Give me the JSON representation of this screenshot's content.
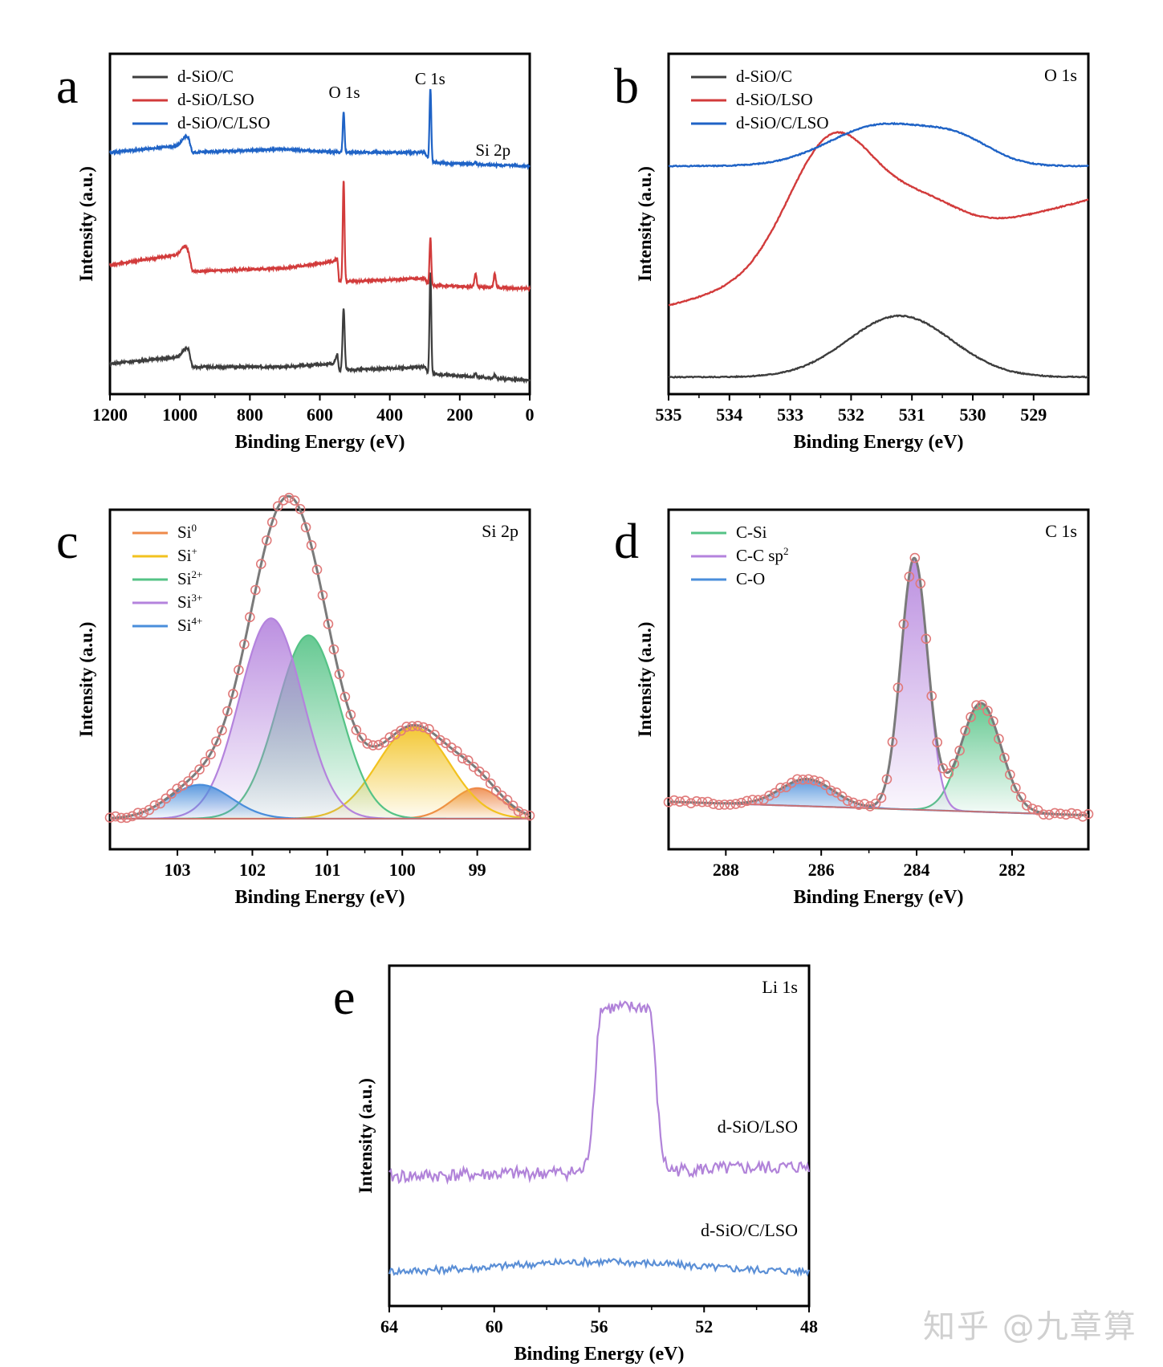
{
  "figure": {
    "watermark": "知乎 @九章算"
  },
  "chart_data": [
    {
      "panel": "a",
      "type": "line",
      "title": "",
      "xlabel": "Binding Energy (eV)",
      "ylabel": "Intensity (a.u.)",
      "xlim": [
        1200,
        0
      ],
      "ylim": [
        0,
        1
      ],
      "xticks": [
        1200,
        1000,
        800,
        600,
        400,
        200,
        0
      ],
      "tick_labels": [
        "1200",
        "1000",
        "800",
        "600",
        "400",
        "200",
        "0"
      ],
      "legend": {
        "placement": "top-left",
        "entries": [
          "d-SiO/C",
          "d-SiO/LSO",
          "d-SiO/C/LSO"
        ]
      },
      "annotations": [
        {
          "text": "O 1s",
          "x": 530,
          "y": 0.87
        },
        {
          "text": "C 1s",
          "x": 285,
          "y": 0.91
        },
        {
          "text": "Si 2p",
          "x": 105,
          "y": 0.7
        }
      ],
      "series": [
        {
          "name": "d-SiO/C",
          "color": "#3d3d3d",
          "baseline": [
            [
              1200,
              0.09
            ],
            [
              990,
              0.11
            ],
            [
              975,
              0.12
            ],
            [
              965,
              0.08
            ],
            [
              700,
              0.08
            ],
            [
              560,
              0.09
            ],
            [
              550,
              0.12
            ],
            [
              545,
              0.07
            ],
            [
              300,
              0.08
            ],
            [
              290,
              0.06
            ],
            [
              0,
              0.04
            ]
          ],
          "peaks": [
            {
              "x": 985,
              "h": 0.02,
              "w": 10
            },
            {
              "x": 532,
              "h": 0.18,
              "w": 3
            },
            {
              "x": 284,
              "h": 0.3,
              "w": 2.5
            },
            {
              "x": 155,
              "h": 0.01,
              "w": 3
            },
            {
              "x": 100,
              "h": 0.01,
              "w": 3
            }
          ]
        },
        {
          "name": "d-SiO/LSO",
          "color": "#d23b3b",
          "baseline": [
            [
              1200,
              0.38
            ],
            [
              1000,
              0.41
            ],
            [
              975,
              0.4
            ],
            [
              965,
              0.36
            ],
            [
              700,
              0.37
            ],
            [
              560,
              0.39
            ],
            [
              550,
              0.4
            ],
            [
              545,
              0.33
            ],
            [
              300,
              0.34
            ],
            [
              290,
              0.32
            ],
            [
              0,
              0.31
            ]
          ],
          "peaks": [
            {
              "x": 985,
              "h": 0.03,
              "w": 10
            },
            {
              "x": 532,
              "h": 0.3,
              "w": 2.5
            },
            {
              "x": 284,
              "h": 0.14,
              "w": 2.5
            },
            {
              "x": 155,
              "h": 0.04,
              "w": 3
            },
            {
              "x": 100,
              "h": 0.04,
              "w": 3
            }
          ]
        },
        {
          "name": "d-SiO/C/LSO",
          "color": "#1f63c6",
          "baseline": [
            [
              1200,
              0.71
            ],
            [
              1000,
              0.73
            ],
            [
              975,
              0.74
            ],
            [
              965,
              0.71
            ],
            [
              700,
              0.72
            ],
            [
              545,
              0.71
            ],
            [
              300,
              0.71
            ],
            [
              285,
              0.68
            ],
            [
              0,
              0.67
            ]
          ],
          "peaks": [
            {
              "x": 985,
              "h": 0.02,
              "w": 10
            },
            {
              "x": 532,
              "h": 0.12,
              "w": 2.5
            },
            {
              "x": 284,
              "h": 0.22,
              "w": 2.5
            },
            {
              "x": 155,
              "h": 0.005,
              "w": 3
            }
          ]
        }
      ]
    },
    {
      "panel": "b",
      "type": "line",
      "title": "O 1s",
      "xlabel": "Binding Energy (eV)",
      "ylabel": "Intensity (a.u.)",
      "xlim": [
        535,
        528.1
      ],
      "ylim": [
        0,
        1
      ],
      "xticks": [
        535,
        534,
        533,
        532,
        531,
        530,
        529
      ],
      "tick_labels": [
        "535",
        "534",
        "533",
        "532",
        "531",
        "530",
        "529"
      ],
      "legend": {
        "placement": "top-left",
        "entries": [
          "d-SiO/C",
          "d-SiO/LSO",
          "d-SiO/C/LSO"
        ]
      },
      "series": [
        {
          "name": "d-SiO/C",
          "color": "#3d3d3d",
          "baseline": 0.05,
          "slope": 0.0,
          "components": [
            {
              "c": 531.2,
              "h": 0.18,
              "s": 0.85
            }
          ]
        },
        {
          "name": "d-SiO/LSO",
          "color": "#d23b3b",
          "baseline": 0.26,
          "slope": -0.045,
          "components": [
            {
              "c": 532.3,
              "h": 0.38,
              "s": 0.72
            },
            {
              "c": 530.8,
              "h": 0.1,
              "s": 0.6
            }
          ]
        },
        {
          "name": "d-SiO/C/LSO",
          "color": "#1f63c6",
          "baseline": 0.67,
          "slope": 0.0,
          "components": [
            {
              "c": 531.5,
              "h": 0.12,
              "s": 0.85
            },
            {
              "c": 530.2,
              "h": 0.06,
              "s": 0.55
            }
          ]
        }
      ]
    },
    {
      "panel": "c",
      "type": "line",
      "title": "Si 2p",
      "xlabel": "Binding Energy (eV)",
      "ylabel": "Intensity (a.u.)",
      "xlim": [
        103.9,
        98.3
      ],
      "ylim": [
        0,
        1
      ],
      "xticks": [
        103,
        102,
        101,
        100,
        99
      ],
      "tick_labels": [
        "103",
        "102",
        "101",
        "100",
        "99"
      ],
      "legend": {
        "placement": "top-left",
        "entries": [
          "Si0",
          "Si+",
          "Si2+",
          "Si3+",
          "Si4+"
        ],
        "base": [
          "Si",
          "Si",
          "Si",
          "Si",
          "Si"
        ],
        "sup": [
          "0",
          "+",
          "2+",
          "3+",
          "4+"
        ]
      },
      "baseline": 0.09,
      "components": [
        {
          "name": "Si0",
          "color": "#ee8a4a",
          "c": 99.0,
          "h": 0.09,
          "s": 0.33
        },
        {
          "name": "Si+",
          "color": "#f2c21f",
          "c": 99.85,
          "h": 0.27,
          "s": 0.48
        },
        {
          "name": "Si2+",
          "color": "#55c386",
          "c": 101.25,
          "h": 0.54,
          "s": 0.42
        },
        {
          "name": "Si3+",
          "color": "#b483dd",
          "c": 101.75,
          "h": 0.59,
          "s": 0.42
        },
        {
          "name": "Si4+",
          "color": "#4a8edb",
          "c": 102.7,
          "h": 0.1,
          "s": 0.42
        }
      ],
      "envelope_color": "#7a7a7a",
      "marker_color": "#e07a7a"
    },
    {
      "panel": "d",
      "type": "line",
      "title": "C 1s",
      "xlabel": "Binding Energy (eV)",
      "ylabel": "Intensity (a.u.)",
      "xlim": [
        289.2,
        280.4
      ],
      "ylim": [
        0,
        1
      ],
      "xticks": [
        288,
        286,
        284,
        282
      ],
      "tick_labels": [
        "288",
        "286",
        "284",
        "282"
      ],
      "legend": {
        "placement": "top-left",
        "entries": [
          "C-Si",
          "C-C sp2",
          "C-O"
        ],
        "base": [
          "C-Si",
          "C-C sp",
          "C-O"
        ],
        "sup": [
          "",
          "2",
          ""
        ]
      },
      "baseline_left": 0.14,
      "baseline_right": 0.1,
      "components": [
        {
          "name": "C-Si",
          "color": "#55c386",
          "c": 282.65,
          "h": 0.32,
          "s": 0.42
        },
        {
          "name": "C-C sp2",
          "color": "#b483dd",
          "c": 284.05,
          "h": 0.74,
          "s": 0.28
        },
        {
          "name": "C-O",
          "color": "#4a8edb",
          "c": 286.3,
          "h": 0.08,
          "s": 0.55
        }
      ],
      "envelope_color": "#7a7a7a",
      "marker_color": "#e07a7a"
    },
    {
      "panel": "e",
      "type": "line",
      "title": "Li 1s",
      "xlabel": "Binding Energy (eV)",
      "ylabel": "Intensity (a.u.)",
      "xlim": [
        64,
        48
      ],
      "ylim": [
        0,
        1
      ],
      "xticks": [
        64,
        60,
        56,
        52,
        48
      ],
      "tick_labels": [
        "64",
        "60",
        "56",
        "52",
        "48"
      ],
      "series": [
        {
          "name": "d-SiO/LSO",
          "label": "d-SiO/LSO",
          "color": "#b183d9",
          "baseline": 0.38,
          "slope": 0.0018,
          "noise": 0.02,
          "peak": {
            "c": 55.0,
            "h": 0.48,
            "hw": 0.9,
            "edge": 0.35
          }
        },
        {
          "name": "d-SiO/C/LSO",
          "label": "d-SiO/C/LSO",
          "color": "#5b8fd6",
          "baseline": 0.1,
          "slope": 0.0,
          "noise": 0.011,
          "bump": {
            "c": 56.0,
            "h": 0.03,
            "s": 3.5
          }
        }
      ]
    }
  ]
}
